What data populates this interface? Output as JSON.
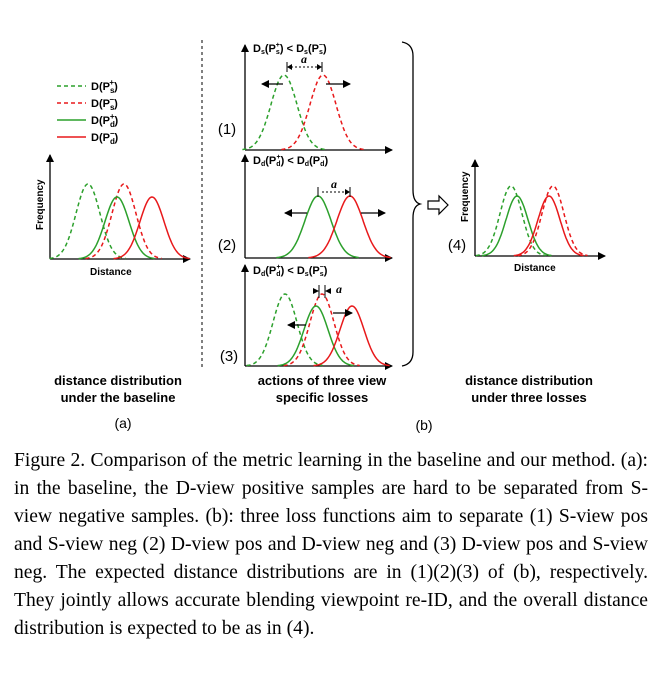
{
  "legend": [
    {
      "label": "D(P",
      "sub": "s",
      "sup": "+",
      "color": "#2ca02c",
      "style": "dashed"
    },
    {
      "label": "D(P",
      "sub": "s",
      "sup": "−",
      "color": "#e8191b",
      "style": "dashed"
    },
    {
      "label": "D(P",
      "sub": "d",
      "sup": "+",
      "color": "#2ca02c",
      "style": "solid"
    },
    {
      "label": "D(P",
      "sub": "d",
      "sup": "−",
      "color": "#e8191b",
      "style": "solid"
    }
  ],
  "axes": {
    "ylabel": "Frequency",
    "xlabel": "Distance"
  },
  "panel_a": {
    "caption_line1": "distance distribution",
    "caption_line2": "under the baseline",
    "label": "(a)"
  },
  "panel_b": {
    "caption_line1": "actions of three view",
    "caption_line2": "specific losses",
    "label": "(b)"
  },
  "panel_4": {
    "caption_line1": "distance distribution",
    "caption_line2": "under three losses",
    "number": "(4)"
  },
  "sub_numbers": [
    "(1)",
    "(2)",
    "(3)"
  ],
  "equations": [
    {
      "lhs": "D",
      "lhs_sub": "s",
      "lhs_arg_sub": "s",
      "lhs_arg_sup": "+",
      "op": "<",
      "rhs": "D",
      "rhs_sub": "s",
      "rhs_arg_sub": "s",
      "rhs_arg_sup": "−"
    },
    {
      "lhs": "D",
      "lhs_sub": "d",
      "lhs_arg_sub": "d",
      "lhs_arg_sup": "+",
      "op": "<",
      "rhs": "D",
      "rhs_sub": "d",
      "rhs_arg_sub": "d",
      "rhs_arg_sup": "−"
    },
    {
      "lhs": "D",
      "lhs_sub": "d",
      "lhs_arg_sub": "d",
      "lhs_arg_sup": "+",
      "op": "<",
      "rhs": "D",
      "rhs_sub": "s",
      "rhs_arg_sub": "s",
      "rhs_arg_sup": "−"
    }
  ],
  "margin_symbol": "a",
  "colors": {
    "green": "#2ca02c",
    "red": "#e8191b"
  },
  "caption": "Figure 2. Comparison of the metric learning in the baseline and our method. (a): in the baseline, the D-view positive samples are hard to be separated from S-view negative samples. (b): three loss functions aim to separate (1) S-view pos and S-view neg (2) D-view pos and D-view neg and (3) D-view pos and S-view neg. The expected distance distributions are in (1)(2)(3) of (b), respectively. They jointly allows accurate blending viewpoint re-ID, and the overall distance distribution is expected to be as in (4)."
}
